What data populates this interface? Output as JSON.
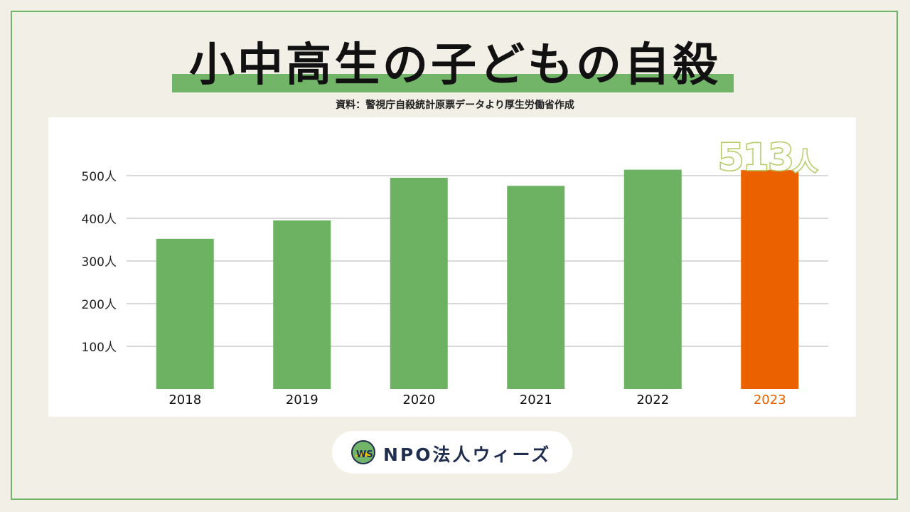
{
  "title": "小中高生の子どもの自殺",
  "source": "資料：警視庁自殺統計原票データより厚生労働省作成",
  "callout": {
    "value": "513",
    "unit": "人"
  },
  "logo": {
    "text": "NPO法人ウィーズ",
    "mark_text": "WS"
  },
  "colors": {
    "background": "#f2efe6",
    "accent": "#72b468",
    "bar": "#6db262",
    "highlight": "#eb6100",
    "callout_stroke": "#b6cc6b",
    "grid": "#d9d9d9",
    "logo_text": "#1f2e4f"
  },
  "chart_data": {
    "type": "bar",
    "categories": [
      "2018",
      "2019",
      "2020",
      "2021",
      "2022",
      "2023"
    ],
    "values": [
      352,
      395,
      495,
      476,
      514,
      513
    ],
    "highlight_index": 5,
    "ytick_values": [
      100,
      200,
      300,
      400,
      500
    ],
    "ytick_labels": [
      "100人",
      "200人",
      "300人",
      "400人",
      "500人"
    ],
    "ylim": [
      0,
      550
    ],
    "grid": true,
    "xlabel": "",
    "ylabel": ""
  }
}
